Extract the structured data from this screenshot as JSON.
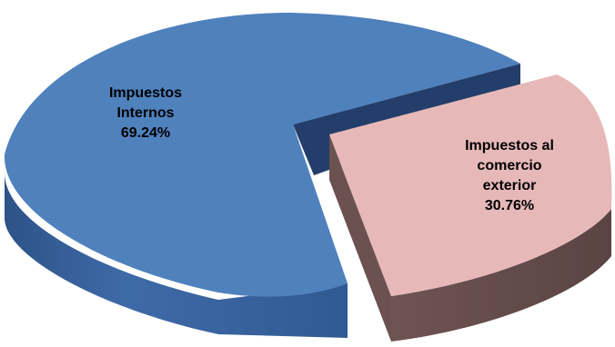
{
  "chart_data": {
    "type": "pie",
    "style": "3d-exploded",
    "title": "",
    "slices": [
      {
        "label_lines": [
          "Impuestos",
          "Internos",
          "69.24%"
        ],
        "category": "Impuestos Internos",
        "value": 69.24,
        "color": "#4F81BD"
      },
      {
        "label_lines": [
          "Impuestos al",
          "comercio",
          "exterior",
          "30.76%"
        ],
        "category": "Impuestos al comercio exterior",
        "value": 30.76,
        "color": "#E6B9B8"
      }
    ]
  }
}
